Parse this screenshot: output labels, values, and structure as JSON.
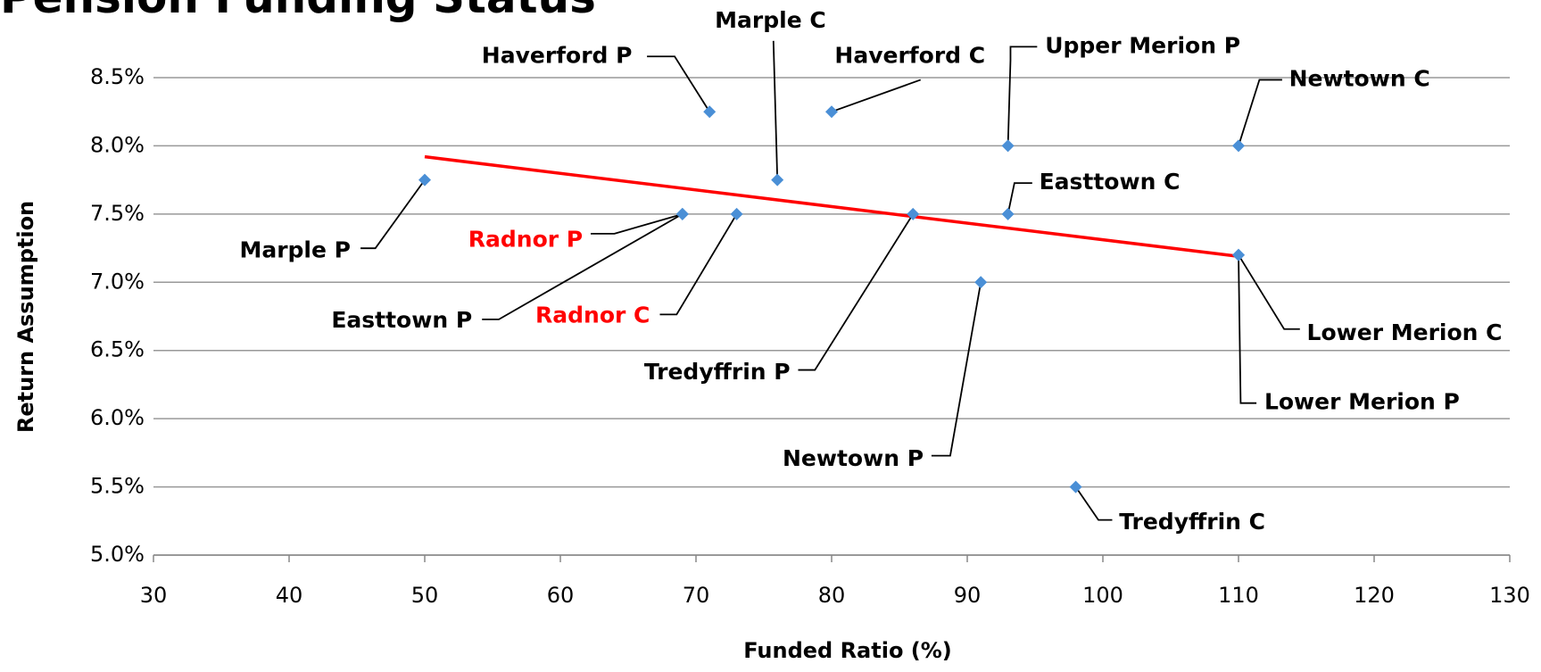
{
  "chart_data": {
    "type": "scatter",
    "title": "Pension Funding Status",
    "xlabel": "Funded Ratio (%)",
    "ylabel": "Return Assumption",
    "x": [
      50,
      71,
      76,
      80,
      93,
      110,
      93,
      69,
      69,
      73,
      86,
      91,
      110,
      110,
      98
    ],
    "values": [
      7.75,
      8.25,
      7.75,
      8.25,
      8.0,
      8.0,
      7.5,
      7.5,
      7.5,
      7.5,
      7.5,
      7.0,
      7.2,
      7.2,
      5.5
    ],
    "point_labels": [
      "Marple P",
      "Haverford P",
      "Marple C",
      "Haverford C",
      "Upper Merion P",
      "Newtown C",
      "Easttown C",
      "Radnor P",
      "Easttown P",
      "Radnor C",
      "Tredyffrin P",
      "Newtown P",
      "Lower Merion C",
      "Lower Merion P",
      "Tredyffrin C"
    ],
    "label_colors": [
      "#000000",
      "#000000",
      "#000000",
      "#000000",
      "#000000",
      "#000000",
      "#000000",
      "#ff0000",
      "#000000",
      "#ff0000",
      "#000000",
      "#000000",
      "#000000",
      "#000000",
      "#000000"
    ],
    "color": "#4a8fd6",
    "trendline": {
      "x": [
        50,
        110
      ],
      "values": [
        7.92,
        7.19
      ],
      "color": "#ff0000"
    },
    "xlim": [
      30,
      130
    ],
    "xticks": [
      30,
      40,
      50,
      60,
      70,
      80,
      90,
      100,
      110,
      120,
      130
    ],
    "ylim": [
      5.0,
      8.5
    ],
    "yticks": [
      {
        "value": 5.0,
        "label": "5.0%"
      },
      {
        "value": 5.5,
        "label": "5.5%"
      },
      {
        "value": 6.0,
        "label": "6.0%"
      },
      {
        "value": 6.5,
        "label": "6.5%"
      },
      {
        "value": 7.0,
        "label": "7.0%"
      },
      {
        "value": 7.5,
        "label": "7.5%"
      },
      {
        "value": 8.0,
        "label": "8.0%"
      },
      {
        "value": 8.5,
        "label": "8.5%"
      }
    ],
    "grid": true
  }
}
